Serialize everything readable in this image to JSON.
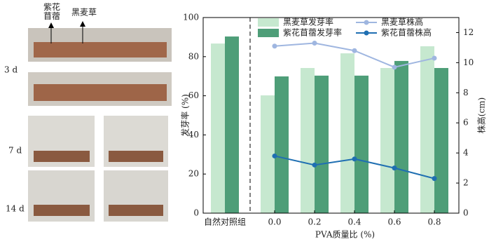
{
  "photo_labels": {
    "alfalfa": "紫花\n苜蓿",
    "ryegrass": "黑麦草",
    "day3": "3 d",
    "day7": "7 d",
    "day14": "14 d"
  },
  "chart_data": {
    "type": "bar",
    "categories": [
      "自然对照组",
      "0.0",
      "0.2",
      "0.4",
      "0.6",
      "0.8"
    ],
    "xlabel": "PVA质量比 (%)",
    "ylabel": "发芽率 (%)",
    "y2label": "株高(cm)",
    "ylim": [
      0,
      100
    ],
    "yticks": [
      0,
      20,
      40,
      60,
      80,
      100
    ],
    "y2lim": [
      0,
      13
    ],
    "y2ticks": [
      0,
      2,
      4,
      6,
      8,
      10,
      12
    ],
    "legend": "top",
    "series": [
      {
        "name": "黑麦草发芽率",
        "type": "bar",
        "color": "#c6e8cf",
        "values": [
          86.7,
          60.2,
          74.2,
          81.7,
          74.2,
          85.3
        ]
      },
      {
        "name": "紫花苜蓿发芽率",
        "type": "bar",
        "color": "#4e9e78",
        "values": [
          90.3,
          69.9,
          70.3,
          70.3,
          77.8,
          74.2
        ]
      },
      {
        "name": "黑麦草株高",
        "type": "line",
        "axis": "y2",
        "color": "#9fb6e0",
        "values": [
          null,
          11.1,
          11.3,
          10.8,
          9.7,
          10.3
        ]
      },
      {
        "name": "紫花苜蓿株高",
        "type": "line",
        "axis": "y2",
        "color": "#1f6fb2",
        "values": [
          null,
          3.8,
          3.2,
          3.6,
          3.0,
          2.3
        ]
      }
    ]
  }
}
